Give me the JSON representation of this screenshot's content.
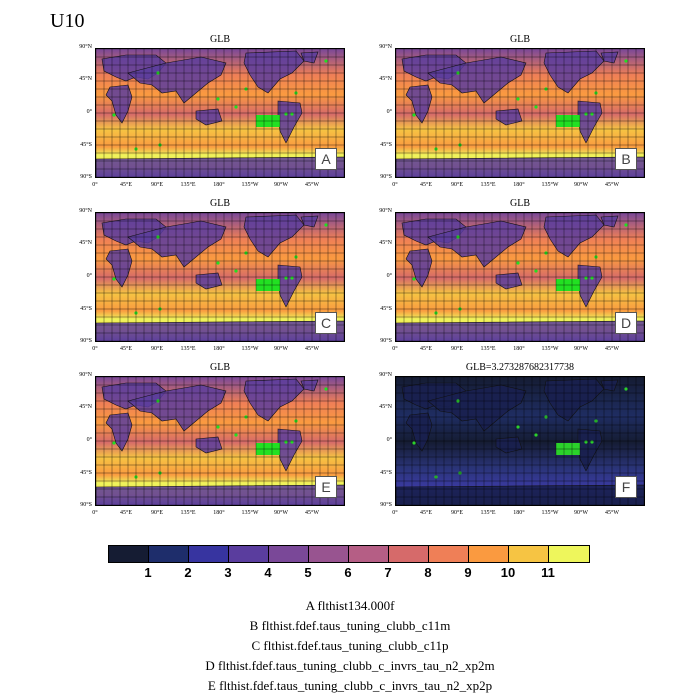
{
  "title": "U10",
  "panels": [
    {
      "id": "A",
      "title": "GLB"
    },
    {
      "id": "B",
      "title": "GLB"
    },
    {
      "id": "C",
      "title": "GLB"
    },
    {
      "id": "D",
      "title": "GLB"
    },
    {
      "id": "E",
      "title": "GLB"
    },
    {
      "id": "F",
      "title": "GLB=3.273287682317738"
    }
  ],
  "lat_labels": [
    "90°N",
    "45°N",
    "0°",
    "45°S",
    "90°S"
  ],
  "lon_labels": [
    "0°",
    "45°E",
    "90°E",
    "135°E",
    "180°",
    "135°W",
    "90°W",
    "45°W"
  ],
  "colorbar": {
    "colors": [
      "#151c33",
      "#1e2d6b",
      "#3734a0",
      "#5a3d9e",
      "#7a4898",
      "#985490",
      "#b55e85",
      "#d66a6a",
      "#ef7f57",
      "#fa9a40",
      "#f6c443",
      "#eef65c"
    ],
    "ticks": [
      "1",
      "2",
      "3",
      "4",
      "5",
      "6",
      "7",
      "8",
      "9",
      "10",
      "11"
    ]
  },
  "legend": [
    "A  flthist134.000f",
    "B  flthist.fdef.taus_tuning_clubb_c11m",
    "C  flthist.fdef.taus_tuning_clubb_c11p",
    "D  flthist.fdef.taus_tuning_clubb_c_invrs_tau_n2_xp2m",
    "E  flthist.fdef.taus_tuning_clubb_c_invrs_tau_n2_xp2p"
  ]
}
